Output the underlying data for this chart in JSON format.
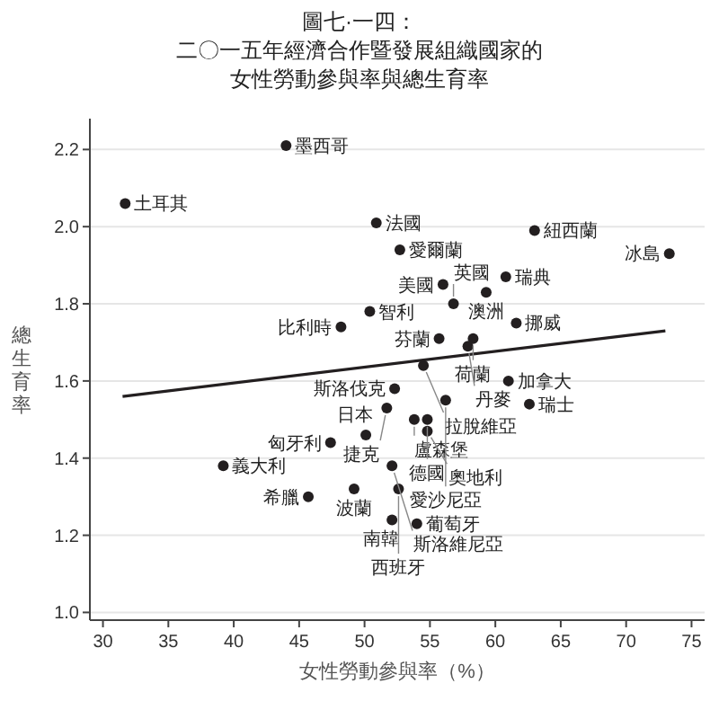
{
  "chart_data": {
    "type": "scatter",
    "title": "圖七·一四：",
    "subtitle": "二〇一五年經濟合作暨發展組織國家的女性勞動參與率與總生育率",
    "xlabel": "女性勞動參與率（%）",
    "ylabel": "總生育率",
    "xlim": [
      29,
      76
    ],
    "ylim": [
      0.98,
      2.28
    ],
    "xticks": [
      30,
      35,
      40,
      45,
      50,
      55,
      60,
      65,
      70,
      75
    ],
    "yticks": [
      {
        "value": 1.0,
        "label": "1.0"
      },
      1.2,
      1.4,
      1.6,
      1.8,
      {
        "value": 2.0,
        "label": "2.0"
      },
      2.2
    ],
    "grid": "y",
    "series": [
      {
        "color": "#231f20",
        "marker": "circle",
        "x": [
          44.0,
          31.7,
          50.9,
          63.0,
          52.7,
          73.3,
          60.8,
          56.0,
          59.3,
          56.8,
          50.4,
          61.6,
          48.2,
          55.7,
          58.3,
          57.9,
          54.5,
          53.8,
          54.8,
          54.8,
          52.3,
          51.7,
          50.1,
          47.4,
          39.2,
          49.2,
          45.7,
          52.1,
          54.0,
          52.1,
          52.6,
          56.2,
          61.0,
          62.6
        ],
        "values": [
          2.21,
          2.06,
          2.01,
          1.99,
          1.94,
          1.93,
          1.87,
          1.85,
          1.83,
          1.8,
          1.78,
          1.75,
          1.74,
          1.71,
          1.71,
          1.69,
          1.64,
          1.5,
          1.5,
          1.47,
          1.58,
          1.53,
          1.46,
          1.44,
          1.38,
          1.32,
          1.3,
          1.24,
          1.23,
          1.38,
          1.32,
          1.55,
          1.6,
          1.54
        ]
      },
      {
        "type": "line",
        "color": "#231f20",
        "line_style": "solid",
        "x": [
          31.5,
          73
        ],
        "values": [
          1.56,
          1.73
        ]
      }
    ],
    "annotations": [
      {
        "text": "墨西哥",
        "x": 44.0,
        "y": 2.21
      },
      {
        "text": "土耳其",
        "x": 31.7,
        "y": 2.06
      },
      {
        "text": "法國",
        "x": 50.9,
        "y": 2.01
      },
      {
        "text": "紐西蘭",
        "x": 63.0,
        "y": 1.99
      },
      {
        "text": "愛爾蘭",
        "x": 52.7,
        "y": 1.94
      },
      {
        "text": "冰島",
        "x": 73.3,
        "y": 1.93
      },
      {
        "text": "瑞典",
        "x": 60.8,
        "y": 1.87
      },
      {
        "text": "美國",
        "x": 56.0,
        "y": 1.85
      },
      {
        "text": "澳洲",
        "x": 59.3,
        "y": 1.83
      },
      {
        "text": "英國",
        "x": 56.8,
        "y": 1.8
      },
      {
        "text": "智利",
        "x": 50.4,
        "y": 1.78
      },
      {
        "text": "挪威",
        "x": 61.6,
        "y": 1.75
      },
      {
        "text": "比利時",
        "x": 48.2,
        "y": 1.74
      },
      {
        "text": "芬蘭",
        "x": 55.7,
        "y": 1.71
      },
      {
        "text": "荷蘭",
        "x": 58.3,
        "y": 1.71
      },
      {
        "text": "丹麥",
        "x": 57.9,
        "y": 1.69
      },
      {
        "text": "拉脫維亞",
        "x": 54.5,
        "y": 1.64
      },
      {
        "text": "盧森堡",
        "x": 53.8,
        "y": 1.5
      },
      {
        "text": "德國",
        "x": 54.8,
        "y": 1.5
      },
      {
        "text": "奧地利",
        "x": 54.8,
        "y": 1.47
      },
      {
        "text": "斯洛伐克",
        "x": 52.3,
        "y": 1.58
      },
      {
        "text": "捷克",
        "x": 51.7,
        "y": 1.53
      },
      {
        "text": "日本",
        "x": 50.1,
        "y": 1.46
      },
      {
        "text": "匈牙利",
        "x": 47.4,
        "y": 1.44
      },
      {
        "text": "義大利",
        "x": 39.2,
        "y": 1.38
      },
      {
        "text": "波蘭",
        "x": 49.2,
        "y": 1.32
      },
      {
        "text": "希臘",
        "x": 45.7,
        "y": 1.3
      },
      {
        "text": "南韓",
        "x": 52.1,
        "y": 1.24
      },
      {
        "text": "葡萄牙",
        "x": 54.0,
        "y": 1.23
      },
      {
        "text": "斯洛維尼亞",
        "x": 52.1,
        "y": 1.38
      },
      {
        "text": "西班牙",
        "x": 52.6,
        "y": 1.32
      },
      {
        "text": "愛沙尼亞",
        "x": 56.2,
        "y": 1.55
      },
      {
        "text": "加拿大",
        "x": 61.0,
        "y": 1.6
      },
      {
        "text": "瑞士",
        "x": 62.6,
        "y": 1.54
      }
    ]
  }
}
